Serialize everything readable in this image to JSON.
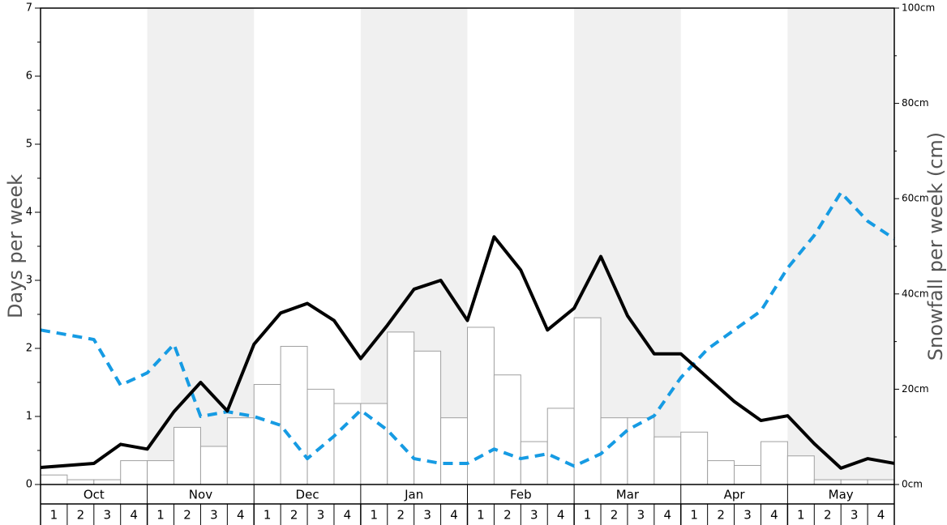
{
  "chart_data": {
    "type": "bar+line",
    "months": [
      "Oct",
      "Nov",
      "Dec",
      "Jan",
      "Feb",
      "Mar",
      "Apr",
      "May"
    ],
    "weeks": [
      "1",
      "2",
      "3",
      "4"
    ],
    "left_axis": {
      "label": "Days per week",
      "range": [
        0,
        7
      ],
      "ticks": [
        "0",
        "1",
        "2",
        "3",
        "4",
        "5",
        "6",
        "7"
      ]
    },
    "right_axis": {
      "label": "Snowfall per week (cm)",
      "range": [
        0,
        100
      ],
      "ticks": [
        "0cm",
        "20cm",
        "40cm",
        "60cm",
        "80cm",
        "100cm"
      ]
    },
    "snowfall_cm": [
      2,
      1,
      1,
      5,
      5,
      12,
      8,
      14,
      21,
      29,
      20,
      17,
      17,
      32,
      28,
      14,
      33,
      23,
      9,
      16,
      35,
      14,
      14,
      10,
      11,
      5,
      4,
      9,
      6,
      1,
      1,
      1
    ],
    "solid_line_days": [
      0.25,
      0.28,
      0.31,
      0.59,
      0.52,
      1.07,
      1.5,
      1.08,
      2.06,
      2.52,
      2.66,
      2.41,
      1.85,
      2.34,
      2.87,
      3.0,
      2.41,
      3.64,
      3.15,
      2.27,
      2.59,
      3.35,
      2.48,
      1.92,
      1.92,
      1.57,
      1.22,
      0.94,
      1.01,
      0.6,
      0.24,
      0.38,
      0.31
    ],
    "dashed_line_days": [
      2.27,
      2.2,
      2.13,
      1.46,
      1.64,
      2.06,
      1.0,
      1.07,
      1.0,
      0.87,
      0.38,
      0.71,
      1.09,
      0.8,
      0.38,
      0.31,
      0.31,
      0.52,
      0.38,
      0.45,
      0.27,
      0.45,
      0.8,
      1.01,
      1.57,
      1.99,
      2.27,
      2.55,
      3.18,
      3.66,
      4.29,
      3.87,
      3.61
    ],
    "colors": {
      "solid_line": "#000000",
      "dashed_line": "#169be3",
      "bar_fill": "#ffffff",
      "bar_stroke": "#a0a0a0",
      "band_shade": "#f0f0f0"
    }
  }
}
